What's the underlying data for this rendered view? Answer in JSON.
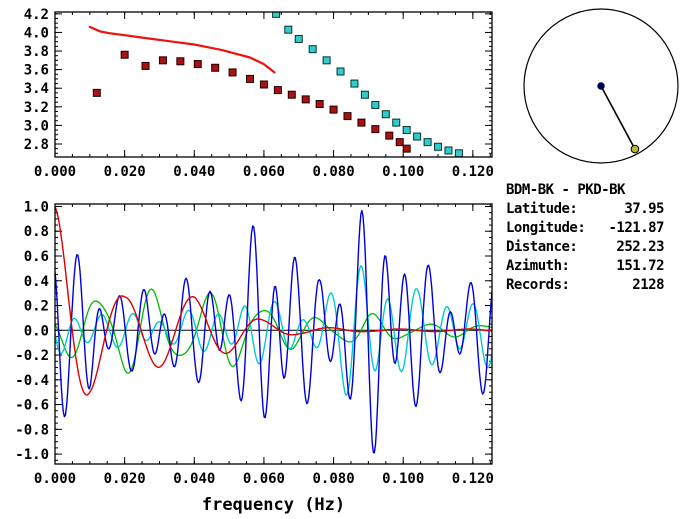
{
  "info_panel": {
    "title": "BDM-BK - PKD-BK",
    "rows": [
      {
        "label": "Latitude:",
        "value": "37.95"
      },
      {
        "label": "Longitude:",
        "value": "-121.87"
      },
      {
        "label": "Distance:",
        "value": "252.23"
      },
      {
        "label": "Azimuth:",
        "value": "151.72"
      },
      {
        "label": "Records:",
        "value": "2128"
      }
    ]
  },
  "compass": {
    "azimuth_deg": 151.72,
    "circle_color": "#000000",
    "center_dot_color": "#000066",
    "station_dot_color": "#b8b832",
    "line_color": "#000000"
  },
  "chart_data": [
    {
      "type": "scatter",
      "title": "",
      "xlabel": "",
      "ylabel": "",
      "xlim": [
        0,
        0.1255
      ],
      "ylim": [
        2.66,
        4.22
      ],
      "grid": false,
      "xticks": [
        0.0,
        0.02,
        0.04,
        0.06,
        0.08,
        0.1,
        0.12
      ],
      "xtick_labels": [
        "0.000",
        "0.020",
        "0.040",
        "0.060",
        "0.080",
        "0.100",
        "0.120"
      ],
      "yticks": [
        2.8,
        3.0,
        3.2,
        3.4,
        3.6,
        3.8,
        4.0,
        4.2
      ],
      "ytick_labels": [
        "2.8",
        "3.0",
        "3.2",
        "3.4",
        "3.6",
        "3.8",
        "4.0",
        "4.2"
      ],
      "x_minor_step": 0.005,
      "y_minor_step": 0.05,
      "series": [
        {
          "name": "reference-curve",
          "kind": "line",
          "color": "#ee1111",
          "width": 2.2,
          "points": [
            [
              0.01,
              4.06
            ],
            [
              0.013,
              4.01
            ],
            [
              0.016,
              3.99
            ],
            [
              0.02,
              3.97
            ],
            [
              0.024,
              3.95
            ],
            [
              0.028,
              3.93
            ],
            [
              0.032,
              3.91
            ],
            [
              0.036,
              3.89
            ],
            [
              0.04,
              3.87
            ],
            [
              0.044,
              3.84
            ],
            [
              0.048,
              3.81
            ],
            [
              0.052,
              3.77
            ],
            [
              0.056,
              3.73
            ],
            [
              0.06,
              3.66
            ],
            [
              0.063,
              3.57
            ]
          ]
        },
        {
          "name": "measured-dispersion-red",
          "kind": "squares",
          "color": "#aa1111",
          "edge": "#220000",
          "size": 7,
          "points": [
            [
              0.012,
              3.35
            ],
            [
              0.02,
              3.76
            ],
            [
              0.026,
              3.64
            ],
            [
              0.031,
              3.7
            ],
            [
              0.036,
              3.69
            ],
            [
              0.041,
              3.66
            ],
            [
              0.046,
              3.62
            ],
            [
              0.051,
              3.57
            ],
            [
              0.056,
              3.5
            ],
            [
              0.06,
              3.44
            ],
            [
              0.064,
              3.38
            ],
            [
              0.068,
              3.33
            ],
            [
              0.072,
              3.28
            ],
            [
              0.076,
              3.23
            ],
            [
              0.08,
              3.17
            ],
            [
              0.084,
              3.1
            ],
            [
              0.088,
              3.03
            ],
            [
              0.092,
              2.96
            ],
            [
              0.096,
              2.89
            ],
            [
              0.099,
              2.82
            ],
            [
              0.101,
              2.75
            ]
          ]
        },
        {
          "name": "measured-dispersion-cyan",
          "kind": "squares",
          "color": "#33cccc",
          "edge": "#003333",
          "size": 7,
          "points": [
            [
              0.0635,
              4.2
            ],
            [
              0.067,
              4.03
            ],
            [
              0.07,
              3.93
            ],
            [
              0.074,
              3.82
            ],
            [
              0.078,
              3.7
            ],
            [
              0.082,
              3.58
            ],
            [
              0.086,
              3.45
            ],
            [
              0.089,
              3.33
            ],
            [
              0.092,
              3.22
            ],
            [
              0.095,
              3.12
            ],
            [
              0.098,
              3.03
            ],
            [
              0.101,
              2.95
            ],
            [
              0.104,
              2.88
            ],
            [
              0.107,
              2.82
            ],
            [
              0.11,
              2.77
            ],
            [
              0.113,
              2.73
            ],
            [
              0.116,
              2.7
            ]
          ]
        }
      ]
    },
    {
      "type": "line",
      "title": "",
      "xlabel": "frequency (Hz)",
      "ylabel": "",
      "xlim": [
        0,
        0.1255
      ],
      "ylim": [
        -1.08,
        1.02
      ],
      "grid": false,
      "zero_line": true,
      "xticks": [
        0.0,
        0.02,
        0.04,
        0.06,
        0.08,
        0.1,
        0.12
      ],
      "xtick_labels": [
        "0.000",
        "0.020",
        "0.040",
        "0.060",
        "0.080",
        "0.100",
        "0.120"
      ],
      "yticks": [
        -1.0,
        -0.8,
        -0.6,
        -0.4,
        -0.2,
        0.0,
        0.2,
        0.4,
        0.6,
        0.8,
        1.0
      ],
      "ytick_labels": [
        "-1.0",
        "-0.8",
        "-0.6",
        "-0.4",
        "-0.2",
        "0.0",
        "0.2",
        "0.4",
        "0.6",
        "0.8",
        "1.0"
      ],
      "x_minor_step": 0.005,
      "y_minor_step": 0.05,
      "series": [
        {
          "name": "waveform-green",
          "kind": "waveform",
          "color": "#00bb00",
          "width": 1.3,
          "envelope": [
            [
              0,
              0.12
            ],
            [
              0.01,
              0.3
            ],
            [
              0.02,
              0.36
            ],
            [
              0.03,
              0.3
            ],
            [
              0.04,
              0.28
            ],
            [
              0.05,
              0.3
            ],
            [
              0.06,
              0.22
            ],
            [
              0.07,
              0.12
            ],
            [
              0.08,
              0.1
            ],
            [
              0.09,
              0.13
            ],
            [
              0.1,
              0.07
            ],
            [
              0.11,
              0.05
            ],
            [
              0.126,
              0.05
            ]
          ],
          "components": [
            {
              "period": 0.0158,
              "phase": 1.35,
              "weight": 0.9
            },
            {
              "period": 0.0092,
              "phase": 0.4,
              "weight": 0.2
            }
          ]
        },
        {
          "name": "waveform-cyan",
          "kind": "waveform",
          "color": "#00cccc",
          "width": 1.4,
          "envelope": [
            [
              0,
              0.28
            ],
            [
              0.008,
              0.18
            ],
            [
              0.016,
              0.12
            ],
            [
              0.024,
              0.17
            ],
            [
              0.032,
              0.13
            ],
            [
              0.04,
              0.16
            ],
            [
              0.048,
              0.22
            ],
            [
              0.056,
              0.3
            ],
            [
              0.064,
              0.22
            ],
            [
              0.072,
              0.18
            ],
            [
              0.08,
              0.35
            ],
            [
              0.086,
              0.6
            ],
            [
              0.092,
              0.62
            ],
            [
              0.098,
              0.45
            ],
            [
              0.104,
              0.32
            ],
            [
              0.11,
              0.28
            ],
            [
              0.116,
              0.33
            ],
            [
              0.126,
              0.3
            ]
          ],
          "components": [
            {
              "period": 0.0082,
              "phase": 2.0,
              "weight": 0.75
            },
            {
              "period": 0.0131,
              "phase": 0.7,
              "weight": 0.3
            }
          ]
        },
        {
          "name": "waveform-blue",
          "kind": "waveform",
          "color": "#0000dd",
          "width": 1.4,
          "envelope": [
            [
              0,
              0.95
            ],
            [
              0.005,
              0.55
            ],
            [
              0.01,
              0.6
            ],
            [
              0.016,
              0.35
            ],
            [
              0.022,
              0.3
            ],
            [
              0.028,
              0.4
            ],
            [
              0.034,
              0.42
            ],
            [
              0.04,
              0.38
            ],
            [
              0.046,
              0.55
            ],
            [
              0.052,
              0.5
            ],
            [
              0.058,
              0.85
            ],
            [
              0.064,
              1.05
            ],
            [
              0.07,
              0.6
            ],
            [
              0.076,
              0.45
            ],
            [
              0.082,
              0.65
            ],
            [
              0.088,
              0.9
            ],
            [
              0.094,
              1.05
            ],
            [
              0.1,
              0.8
            ],
            [
              0.106,
              0.5
            ],
            [
              0.112,
              0.45
            ],
            [
              0.118,
              0.42
            ],
            [
              0.126,
              0.5
            ]
          ],
          "components": [
            {
              "period": 0.0063,
              "phase": 0.0,
              "weight": 0.7
            },
            {
              "period": 0.0101,
              "phase": 2.1,
              "weight": 0.4
            }
          ]
        },
        {
          "name": "waveform-red",
          "kind": "waveform",
          "color": "#dd0000",
          "width": 1.4,
          "envelope": [
            [
              0,
              1.0
            ],
            [
              0.005,
              0.72
            ],
            [
              0.01,
              0.5
            ],
            [
              0.015,
              0.35
            ],
            [
              0.02,
              0.27
            ],
            [
              0.03,
              0.3
            ],
            [
              0.04,
              0.27
            ],
            [
              0.05,
              0.18
            ],
            [
              0.06,
              0.08
            ],
            [
              0.07,
              0.03
            ],
            [
              0.09,
              0.01
            ],
            [
              0.126,
              0.01
            ]
          ],
          "components": [
            {
              "period": 0.0198,
              "phase": 0.0,
              "weight": 1.0
            }
          ]
        }
      ]
    }
  ]
}
